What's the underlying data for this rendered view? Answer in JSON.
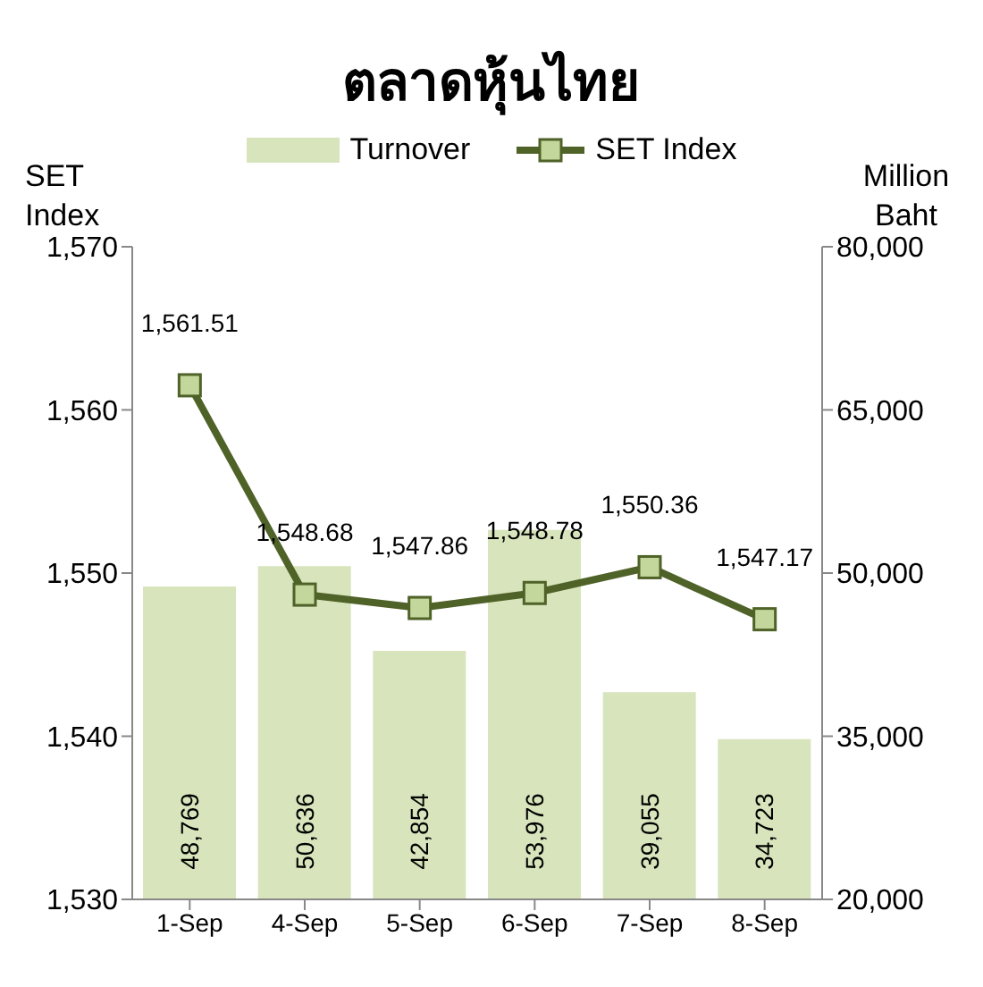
{
  "chart_data": {
    "type": "bar",
    "title": "ตลาดหุ้นไทย",
    "ylabel": "SET Index",
    "y2label": "Million Baht",
    "categories": [
      "1-Sep",
      "4-Sep",
      "5-Sep",
      "6-Sep",
      "7-Sep",
      "8-Sep"
    ],
    "series": [
      {
        "name": "Turnover",
        "axis": "y2",
        "color": "#d7e4bc",
        "values": [
          48769,
          50636,
          42854,
          53976,
          39055,
          34723
        ],
        "value_labels": [
          "48,769",
          "50,636",
          "42,854",
          "53,976",
          "39,055",
          "34,723"
        ]
      },
      {
        "name": "SET Index",
        "type": "line",
        "axis": "y",
        "color": "#4f6228",
        "values": [
          1561.51,
          1548.68,
          1547.86,
          1548.78,
          1550.36,
          1547.17
        ],
        "value_labels": [
          "1,561.51",
          "1,548.68",
          "1,547.86",
          "1,548.78",
          "1,550.36",
          "1,547.17"
        ]
      }
    ],
    "ylim": [
      1530,
      1570
    ],
    "yticks": [
      {
        "value": 1530,
        "label": "1,530"
      },
      {
        "value": 1540,
        "label": "1,540"
      },
      {
        "value": 1550,
        "label": "1,550"
      },
      {
        "value": 1560,
        "label": "1,560"
      },
      {
        "value": 1570,
        "label": "1,570"
      }
    ],
    "y2lim": [
      20000,
      80000
    ],
    "y2ticks": [
      {
        "value": 20000,
        "label": "20,000"
      },
      {
        "value": 35000,
        "label": "35,000"
      },
      {
        "value": 50000,
        "label": "50,000"
      },
      {
        "value": 65000,
        "label": "65,000"
      },
      {
        "value": 80000,
        "label": "80,000"
      }
    ],
    "legend": "top",
    "marker": "square"
  }
}
